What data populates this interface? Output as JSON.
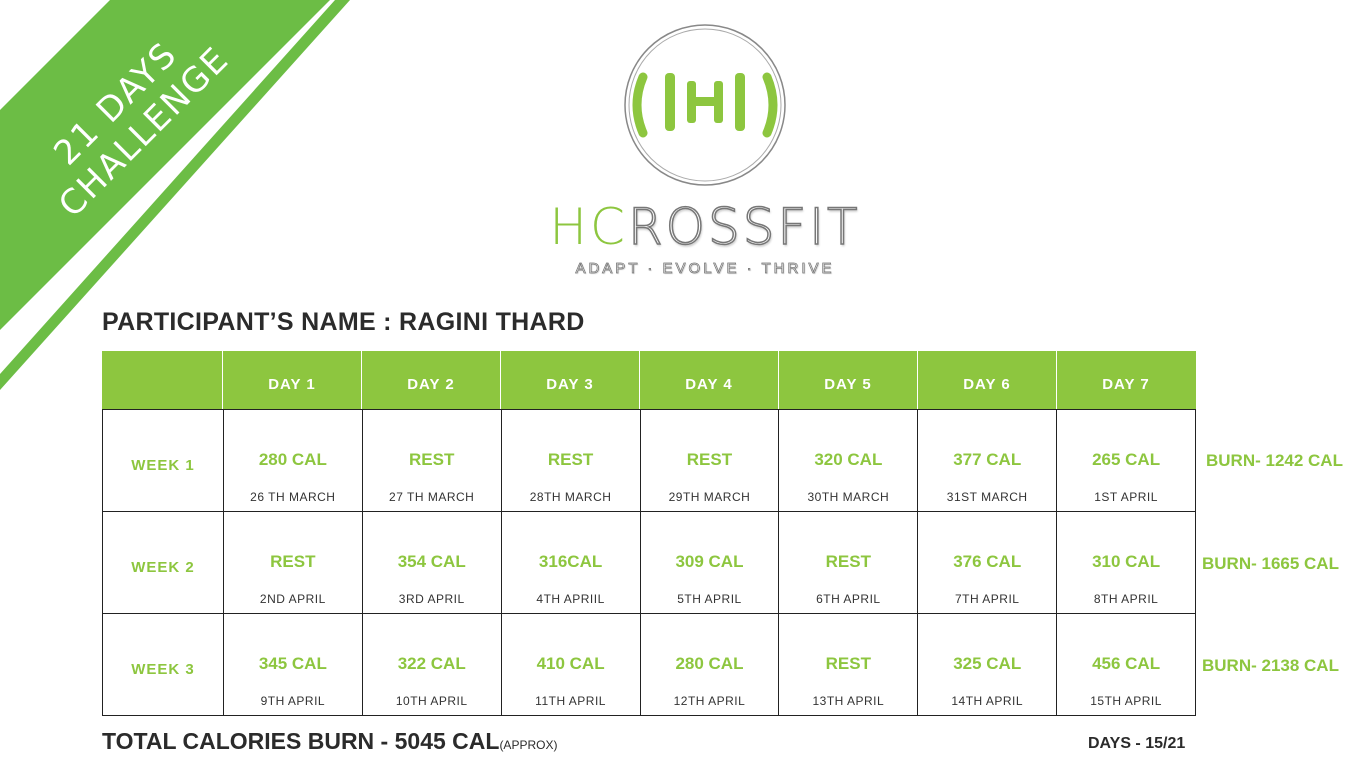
{
  "ribbon": {
    "line1": "21 DAYS",
    "line2": "CHALLENGE",
    "color": "#6cbd45"
  },
  "logo": {
    "word_a": "HC",
    "word_b": "ROSSFIT",
    "tagline": "ADAPT · EVOLVE · THRIVE"
  },
  "participant": "PARTICIPANT’S NAME : RAGINI THARD",
  "days_header": [
    "DAY 1",
    "DAY 2",
    "DAY 3",
    "DAY 4",
    "DAY 5",
    "DAY 6",
    "DAY 7"
  ],
  "weeks": [
    {
      "label": "WEEK 1",
      "burn": "BURN- 1242 CAL",
      "cells": [
        {
          "cal": "280 CAL",
          "date": "26 TH MARCH"
        },
        {
          "cal": "REST",
          "date": "27 TH MARCH"
        },
        {
          "cal": "REST",
          "date": "28TH MARCH"
        },
        {
          "cal": "REST",
          "date": "29TH MARCH"
        },
        {
          "cal": "320 CAL",
          "date": "30TH MARCH"
        },
        {
          "cal": "377 CAL",
          "date": "31ST MARCH"
        },
        {
          "cal": "265 CAL",
          "date": "1ST APRIL"
        }
      ]
    },
    {
      "label": "WEEK 2",
      "burn": "BURN- 1665 CAL",
      "cells": [
        {
          "cal": "REST",
          "date": "2ND APRIL"
        },
        {
          "cal": "354 CAL",
          "date": "3RD APRIL"
        },
        {
          "cal": "316CAL",
          "date": "4TH APRIIL"
        },
        {
          "cal": "309 CAL",
          "date": "5TH APRIL"
        },
        {
          "cal": "REST",
          "date": "6TH APRIL"
        },
        {
          "cal": "376 CAL",
          "date": "7TH APRIL"
        },
        {
          "cal": "310 CAL",
          "date": "8TH APRIL"
        }
      ]
    },
    {
      "label": "WEEK 3",
      "burn": "BURN- 2138 CAL",
      "cells": [
        {
          "cal": "345 CAL",
          "date": "9TH APRIL"
        },
        {
          "cal": "322 CAL",
          "date": "10TH APRIL"
        },
        {
          "cal": "410 CAL",
          "date": "11TH APRIL"
        },
        {
          "cal": "280 CAL",
          "date": "12TH APRIL"
        },
        {
          "cal": "REST",
          "date": "13TH APRIL"
        },
        {
          "cal": "325 CAL",
          "date": "14TH APRIL"
        },
        {
          "cal": "456 CAL",
          "date": "15TH APRIL"
        }
      ]
    }
  ],
  "total": {
    "label": "TOTAL CALORIES BURN - 5045 CAL",
    "approx": "(APPROX)"
  },
  "days_progress": "DAYS - 15/21",
  "colors": {
    "accent": "#8dc63f",
    "text": "#2b2b2b"
  }
}
